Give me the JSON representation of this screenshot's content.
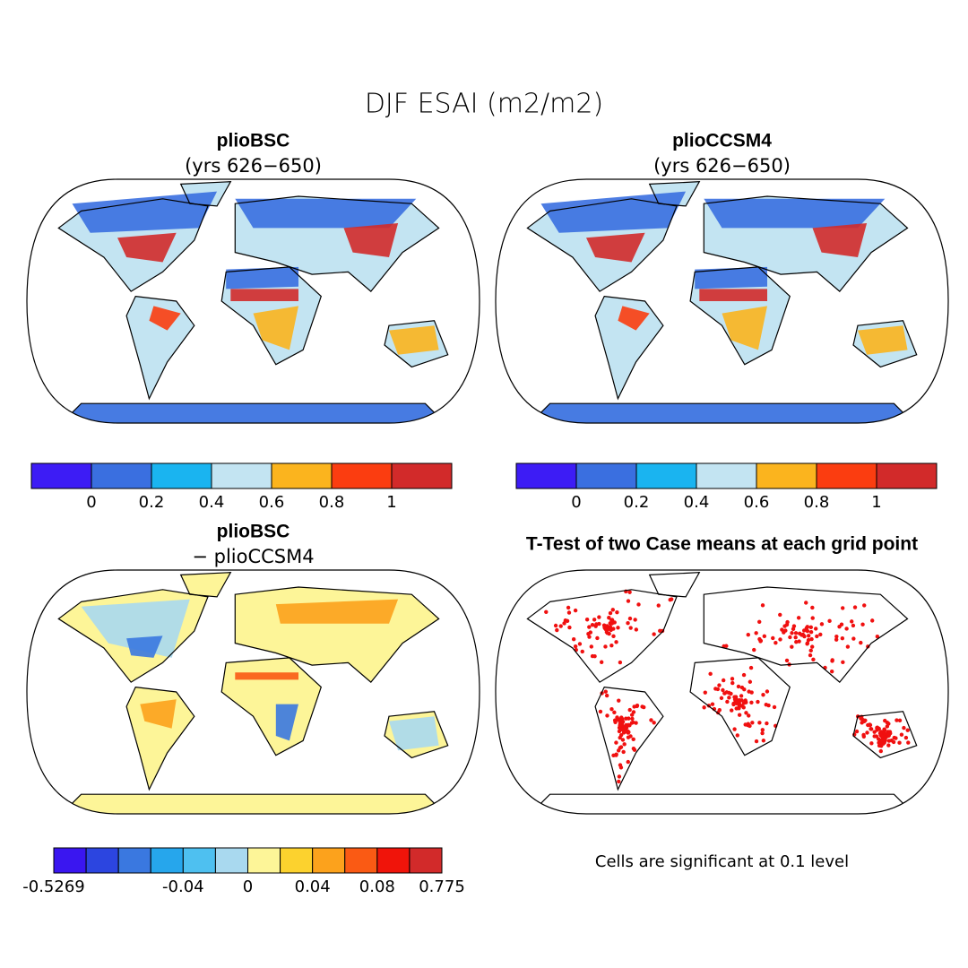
{
  "title": "DJF ESAI (m2/m2)",
  "panels": [
    {
      "title": "plioBSC",
      "subtitle": "(yrs 626−650)"
    },
    {
      "title": "plioCCSM4",
      "subtitle": "(yrs 626−650)"
    },
    {
      "title": "plioBSC",
      "subtitle": "− plioCCSM4"
    },
    {
      "title": "T-Test of two Case means at each grid point",
      "note": "Cells are significant at 0.1 level"
    }
  ],
  "colorbars": [
    {
      "colors": [
        "#3d1cf5",
        "#3a6fe0",
        "#1ab4f0",
        "#c3e4f2",
        "#fbb41e",
        "#fb3d10",
        "#d22a2a"
      ],
      "labels": [
        null,
        0,
        0.2,
        0.4,
        0.6,
        0.8,
        1,
        null
      ]
    },
    {
      "colors": [
        "#3d1cf5",
        "#3a6fe0",
        "#1ab4f0",
        "#c3e4f2",
        "#fbb41e",
        "#fb3d10",
        "#d22a2a"
      ],
      "labels": [
        null,
        0,
        0.2,
        0.4,
        0.6,
        0.8,
        1,
        null
      ]
    },
    {
      "colors": [
        "#3a16f0",
        "#2c45e0",
        "#3a78e0",
        "#26a6ec",
        "#4ec0f0",
        "#a9d9ef",
        "#fdf598",
        "#fcd22e",
        "#fca21c",
        "#fa5a14",
        "#f0140a",
        "#d22a2a"
      ],
      "labels": [
        -0.5269,
        null,
        null,
        null,
        -0.04,
        null,
        0,
        null,
        0.04,
        null,
        0.08,
        null,
        0.775
      ]
    }
  ]
}
